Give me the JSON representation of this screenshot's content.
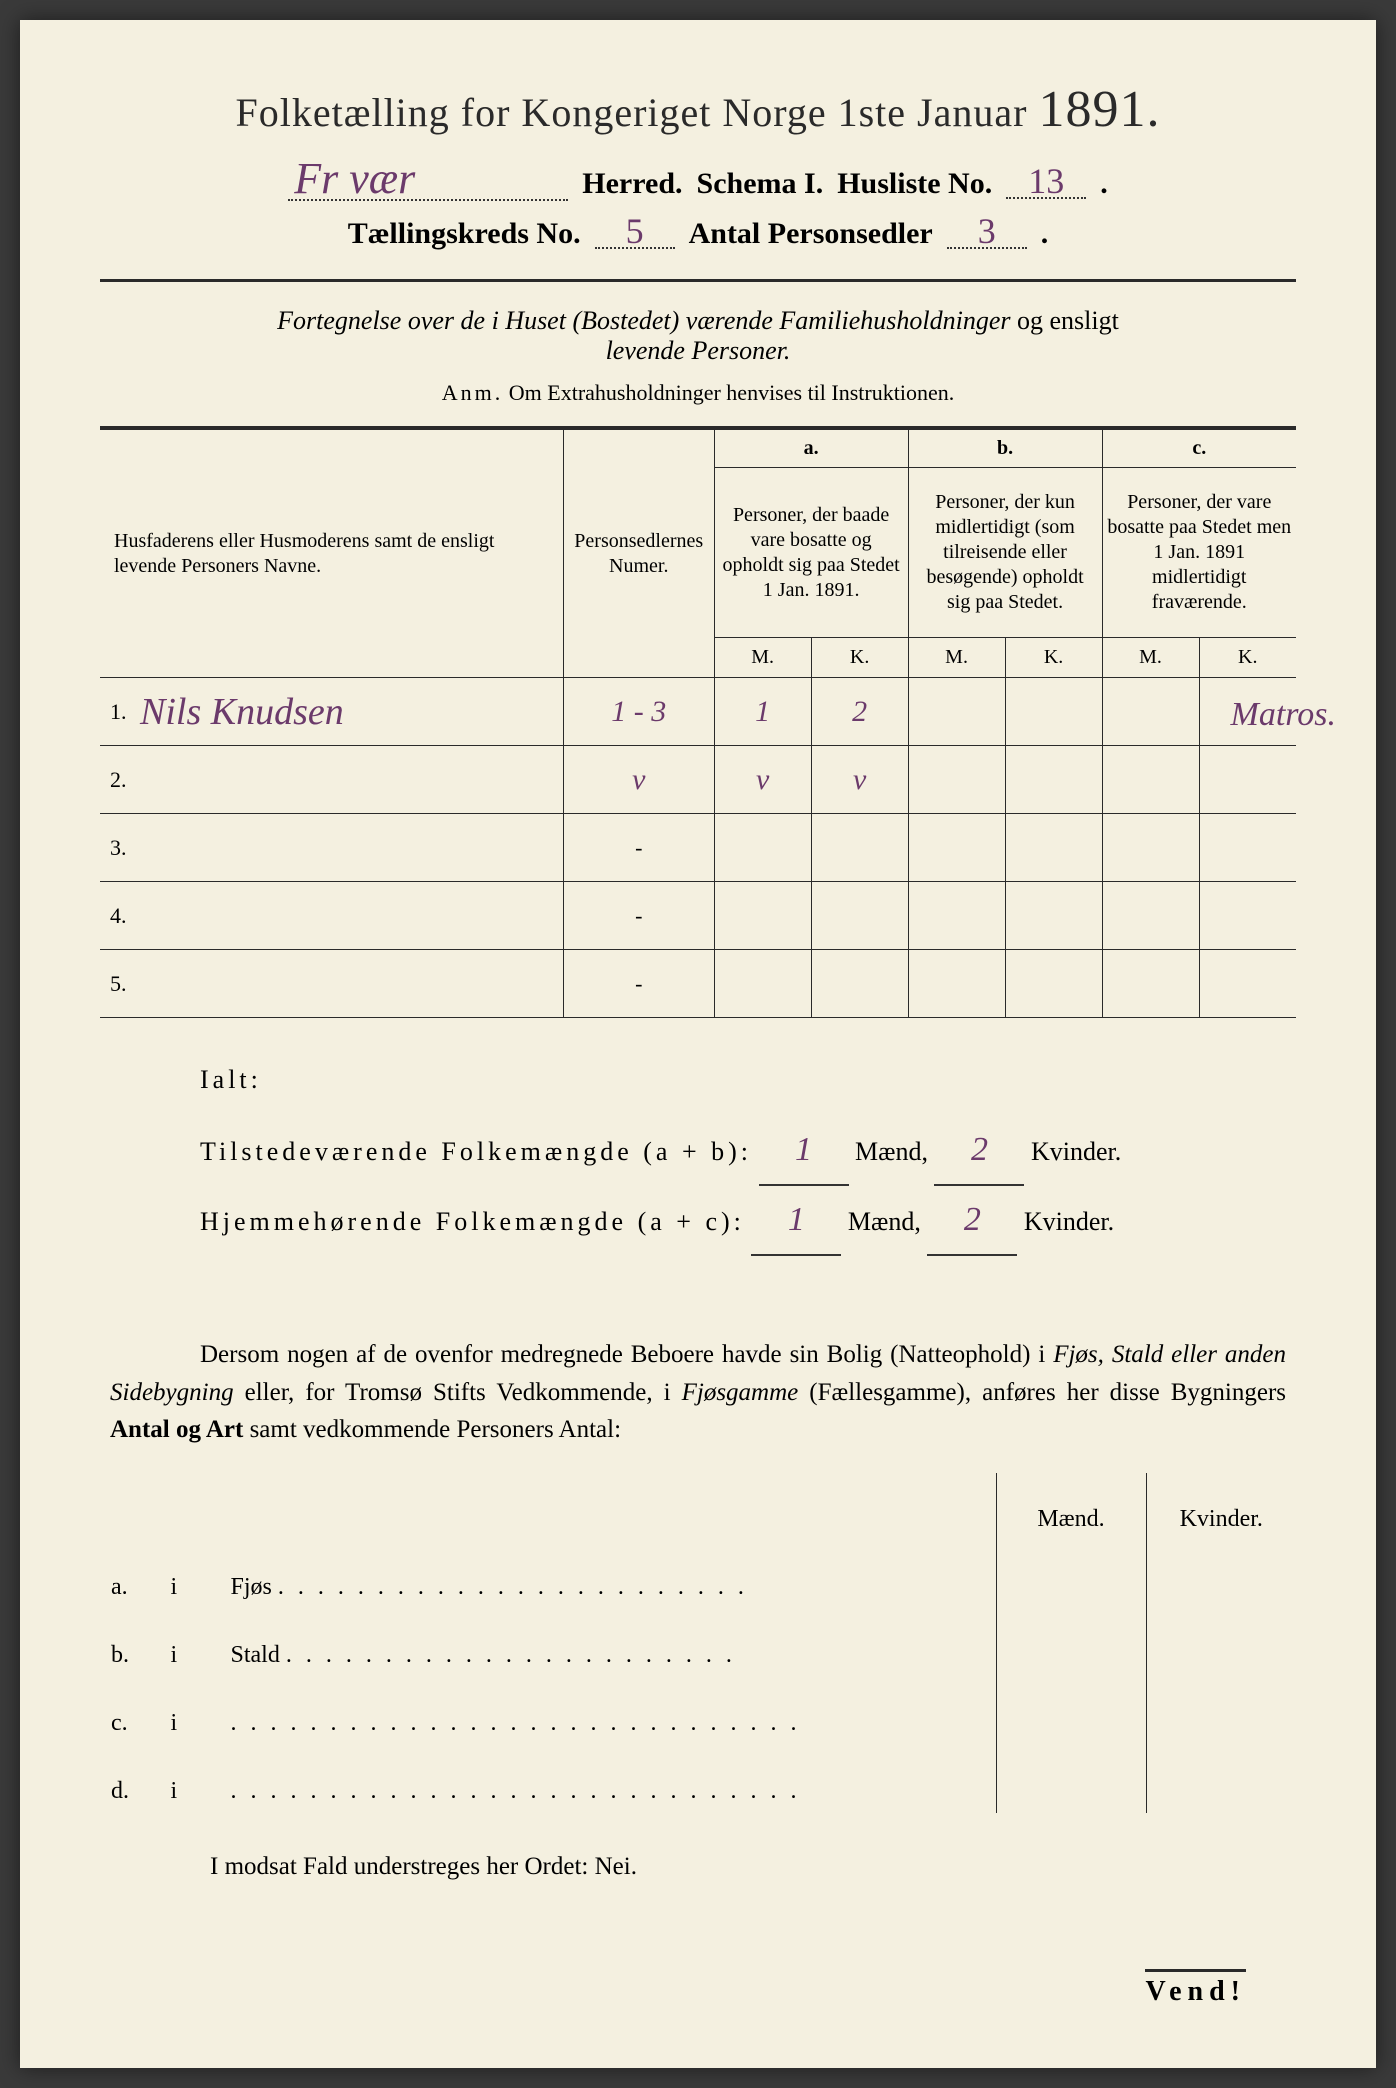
{
  "colors": {
    "paper": "#f4f0e0",
    "ink": "#2a2a2a",
    "handwriting": "#6b3a6b",
    "background": "#3a3a3a"
  },
  "header": {
    "title_prefix": "Folketælling for Kongeriget Norge 1ste Januar",
    "year": "1891.",
    "herred_value": "Fr vær",
    "herred_label": "Herred.",
    "schema_label": "Schema I.",
    "husliste_label": "Husliste No.",
    "husliste_value": "13",
    "kreds_label": "Tællingskreds No.",
    "kreds_value": "5",
    "antal_label": "Antal Personsedler",
    "antal_value": "3"
  },
  "subtitle": {
    "line1a": "Fortegnelse over de i Huset (Bostedet) værende Familiehusholdninger",
    "line1b": "og ensligt",
    "line2": "levende Personer."
  },
  "anm": {
    "label": "Anm.",
    "text": "Om Extrahusholdninger henvises til Instruktionen."
  },
  "table": {
    "col_name": "Husfaderens eller Husmoderens samt de ensligt levende Personers Navne.",
    "col_num": "Personsedlernes Numer.",
    "col_a_letter": "a.",
    "col_a": "Personer, der baade vare bosatte og opholdt sig paa Stedet 1 Jan. 1891.",
    "col_b_letter": "b.",
    "col_b": "Personer, der kun midlertidigt (som tilreisende eller besøgende) opholdt sig paa Stedet.",
    "col_c_letter": "c.",
    "col_c": "Personer, der vare bosatte paa Stedet men 1 Jan. 1891 midlertidigt fraværende.",
    "mk_m": "M.",
    "mk_k": "K.",
    "rows": [
      {
        "n": "1.",
        "name": "Nils Knudsen",
        "num": "1 - 3",
        "a_m": "1",
        "a_k": "2",
        "b_m": "",
        "b_k": "",
        "c_m": "",
        "c_k": ""
      },
      {
        "n": "2.",
        "name": "",
        "num": "v",
        "a_m": "v",
        "a_k": "v",
        "b_m": "",
        "b_k": "",
        "c_m": "",
        "c_k": ""
      },
      {
        "n": "3.",
        "name": "",
        "num": "-",
        "a_m": "",
        "a_k": "",
        "b_m": "",
        "b_k": "",
        "c_m": "",
        "c_k": ""
      },
      {
        "n": "4.",
        "name": "",
        "num": "-",
        "a_m": "",
        "a_k": "",
        "b_m": "",
        "b_k": "",
        "c_m": "",
        "c_k": ""
      },
      {
        "n": "5.",
        "name": "",
        "num": "-",
        "a_m": "",
        "a_k": "",
        "b_m": "",
        "b_k": "",
        "c_m": "",
        "c_k": ""
      }
    ],
    "margin_note": "Matros."
  },
  "totals": {
    "ialt": "Ialt:",
    "line1_label": "Tilstedeværende Folkemængde (a + b):",
    "line2_label": "Hjemmehørende Folkemængde (a + c):",
    "maend": "Mænd,",
    "kvinder": "Kvinder.",
    "l1_m": "1",
    "l1_k": "2",
    "l2_m": "1",
    "l2_k": "2"
  },
  "para": {
    "text1": "Dersom nogen af de ovenfor medregnede Beboere havde sin Bolig (Natteophold) i ",
    "em1": "Fjøs, Stald eller anden Sidebygning",
    "text2": " eller, for Tromsø Stifts Vedkommende, i ",
    "em2": "Fjøsgamme",
    "text3": " (Fællesgamme), anføres her disse Bygningers ",
    "b1": "Antal og Art",
    "text4": " samt vedkommende Personers Antal:"
  },
  "lower": {
    "maend": "Mænd.",
    "kvinder": "Kvinder.",
    "rows": [
      {
        "lab": "a.",
        "i": "i",
        "name": "Fjøs"
      },
      {
        "lab": "b.",
        "i": "i",
        "name": "Stald"
      },
      {
        "lab": "c.",
        "i": "i",
        "name": ""
      },
      {
        "lab": "d.",
        "i": "i",
        "name": ""
      }
    ]
  },
  "nei": "I modsat Fald understreges her Ordet: Nei.",
  "vend": "Vend!"
}
